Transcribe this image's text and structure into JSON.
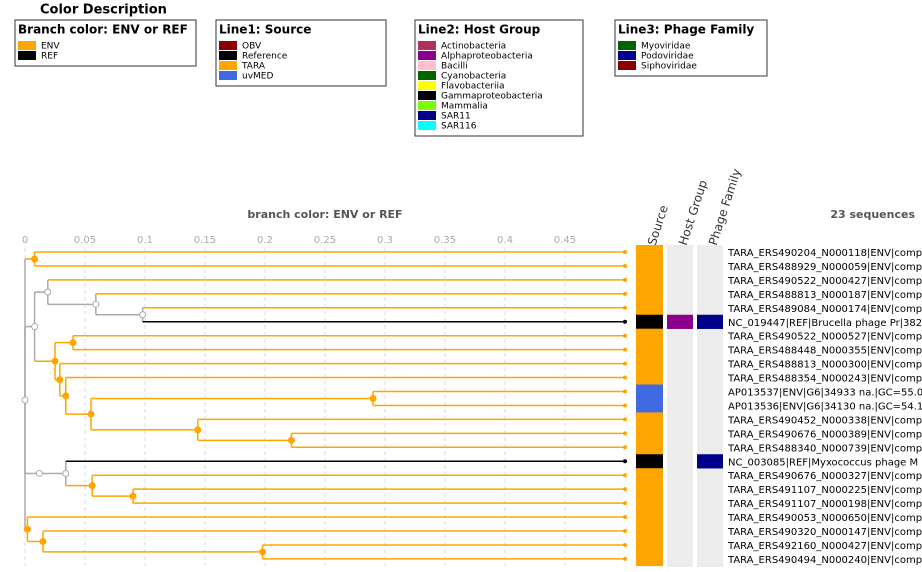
{
  "legend": {
    "title": "Color Description",
    "groups": [
      {
        "title": "Branch color: ENV or REF",
        "items": [
          {
            "name": "ENV",
            "color": "#ffa500"
          },
          {
            "name": "REF",
            "color": "#000000"
          }
        ]
      },
      {
        "title": "Line1: Source",
        "items": [
          {
            "name": "OBV",
            "color": "#8b0000"
          },
          {
            "name": "Reference",
            "color": "#000000"
          },
          {
            "name": "TARA",
            "color": "#ffa500"
          },
          {
            "name": "uvMED",
            "color": "#4169e1"
          }
        ]
      },
      {
        "title": "Line2: Host Group",
        "items": [
          {
            "name": "Actinobacteria",
            "color": "#b03060"
          },
          {
            "name": "Alphaproteobacteria",
            "color": "#8b008b"
          },
          {
            "name": "Bacilli",
            "color": "#ffc0cb"
          },
          {
            "name": "Cyanobacteria",
            "color": "#006400"
          },
          {
            "name": "Flavobacteriia",
            "color": "#ffff00"
          },
          {
            "name": "Gammaproteobacteria",
            "color": "#000000"
          },
          {
            "name": "Mammalia",
            "color": "#7cfc00"
          },
          {
            "name": "SAR11",
            "color": "#00008b"
          },
          {
            "name": "SAR116",
            "color": "#00ffff"
          }
        ]
      },
      {
        "title": "Line3: Phage Family",
        "items": [
          {
            "name": "Myoviridae",
            "color": "#006400"
          },
          {
            "name": "Podoviridae",
            "color": "#00008b"
          },
          {
            "name": "Siphoviridae",
            "color": "#8b0000"
          }
        ]
      }
    ]
  },
  "tree": {
    "title": "branch color: ENV or REF",
    "count_label": "23 sequences",
    "columns": [
      "Source",
      "Host Group",
      "Phage Family"
    ],
    "xlim": [
      0,
      0.5
    ],
    "xticks": [
      0,
      0.05,
      0.1,
      0.15,
      0.2,
      0.25,
      0.3,
      0.35,
      0.4,
      0.45
    ],
    "grid": true,
    "root": {
      "children": [
        {
          "length": 0.008,
          "children": [
            {
              "label": "TARA_ERS490204_N000118|ENV|comp",
              "branch": "ENV",
              "source": "TARA"
            },
            {
              "label": "TARA_ERS488929_N000059|ENV|comp",
              "branch": "ENV",
              "source": "TARA"
            }
          ]
        },
        {
          "length": 0,
          "children": [
            {
              "length": 0.008,
              "children": [
                {
                  "length": 0.011,
                  "children": [
                    {
                      "label": "TARA_ERS490522_N000427|ENV|comp",
                      "branch": "ENV",
                      "source": "TARA"
                    },
                    {
                      "length": 0.04,
                      "children": [
                        {
                          "label": "TARA_ERS488813_N000187|ENV|comp",
                          "branch": "ENV",
                          "source": "TARA"
                        },
                        {
                          "length": 0.039,
                          "children": [
                            {
                              "label": "TARA_ERS489084_N000174|ENV|comp",
                              "branch": "ENV",
                              "source": "TARA"
                            },
                            {
                              "label": "NC_019447|REF|Brucella phage Pr|382",
                              "branch": "REF",
                              "source": "Reference",
                              "host_group": "Alphaproteobacteria",
                              "phage_family": "Podoviridae"
                            }
                          ]
                        }
                      ]
                    }
                  ]
                },
                {
                  "length": 0.017,
                  "children": [
                    {
                      "length": 0.015,
                      "children": [
                        {
                          "label": "TARA_ERS490522_N000527|ENV|comp",
                          "branch": "ENV",
                          "source": "TARA"
                        },
                        {
                          "label": "TARA_ERS488448_N000355|ENV|comp",
                          "branch": "ENV",
                          "source": "TARA"
                        }
                      ]
                    },
                    {
                      "length": 0.004,
                      "children": [
                        {
                          "label": "TARA_ERS488813_N000300|ENV|comp",
                          "branch": "ENV",
                          "source": "TARA"
                        },
                        {
                          "length": 0.005,
                          "children": [
                            {
                              "label": "TARA_ERS488354_N000243|ENV|comp",
                              "branch": "ENV",
                              "source": "TARA"
                            },
                            {
                              "length": 0.021,
                              "children": [
                                {
                                  "length": 0.235,
                                  "children": [
                                    {
                                      "label": "AP013537|ENV|G6|34933 na.|GC=55.0",
                                      "branch": "ENV",
                                      "source": "uvMED"
                                    },
                                    {
                                      "label": "AP013536|ENV|G6|34130 na.|GC=54.1",
                                      "branch": "ENV",
                                      "source": "uvMED"
                                    }
                                  ]
                                },
                                {
                                  "length": 0.089,
                                  "children": [
                                    {
                                      "label": "TARA_ERS490452_N000338|ENV|comp",
                                      "branch": "ENV",
                                      "source": "TARA"
                                    },
                                    {
                                      "length": 0.078,
                                      "children": [
                                        {
                                          "label": "TARA_ERS490676_N000389|ENV|comp",
                                          "branch": "ENV",
                                          "source": "TARA"
                                        },
                                        {
                                          "label": "TARA_ERS488340_N000739|ENV|comp",
                                          "branch": "ENV",
                                          "source": "TARA"
                                        }
                                      ]
                                    }
                                  ]
                                }
                              ]
                            }
                          ]
                        }
                      ]
                    }
                  ]
                }
              ]
            },
            {
              "length": 0.012,
              "children": [
                {
                  "length": 0.022,
                  "children": [
                    {
                      "label": "NC_003085|REF|Myxococcus phage M",
                      "branch": "REF",
                      "source": "Reference",
                      "phage_family": "Podoviridae"
                    },
                    {
                      "length": 0.022,
                      "children": [
                        {
                          "label": "TARA_ERS490676_N000327|ENV|comp",
                          "branch": "ENV",
                          "source": "TARA"
                        },
                        {
                          "length": 0.034,
                          "children": [
                            {
                              "label": "TARA_ERS491107_N000225|ENV|comp",
                              "branch": "ENV",
                              "source": "TARA"
                            },
                            {
                              "label": "TARA_ERS491107_N000198|ENV|comp",
                              "branch": "ENV",
                              "source": "TARA"
                            }
                          ]
                        }
                      ]
                    }
                  ]
                }
              ]
            }
          ]
        },
        {
          "length": 0.002,
          "children": [
            {
              "label": "TARA_ERS490053_N000650|ENV|comp",
              "branch": "ENV",
              "source": "TARA"
            },
            {
              "length": 0.013,
              "children": [
                {
                  "label": "TARA_ERS490320_N000147|ENV|comp",
                  "branch": "ENV",
                  "source": "TARA"
                },
                {
                  "length": 0.183,
                  "children": [
                    {
                      "label": "TARA_ERS492160_N000427|ENV|comp",
                      "branch": "ENV",
                      "source": "TARA"
                    },
                    {
                      "label": "TARA_ERS490494_N000240|ENV|comp",
                      "branch": "ENV",
                      "source": "TARA"
                    }
                  ]
                }
              ]
            }
          ]
        }
      ]
    }
  }
}
